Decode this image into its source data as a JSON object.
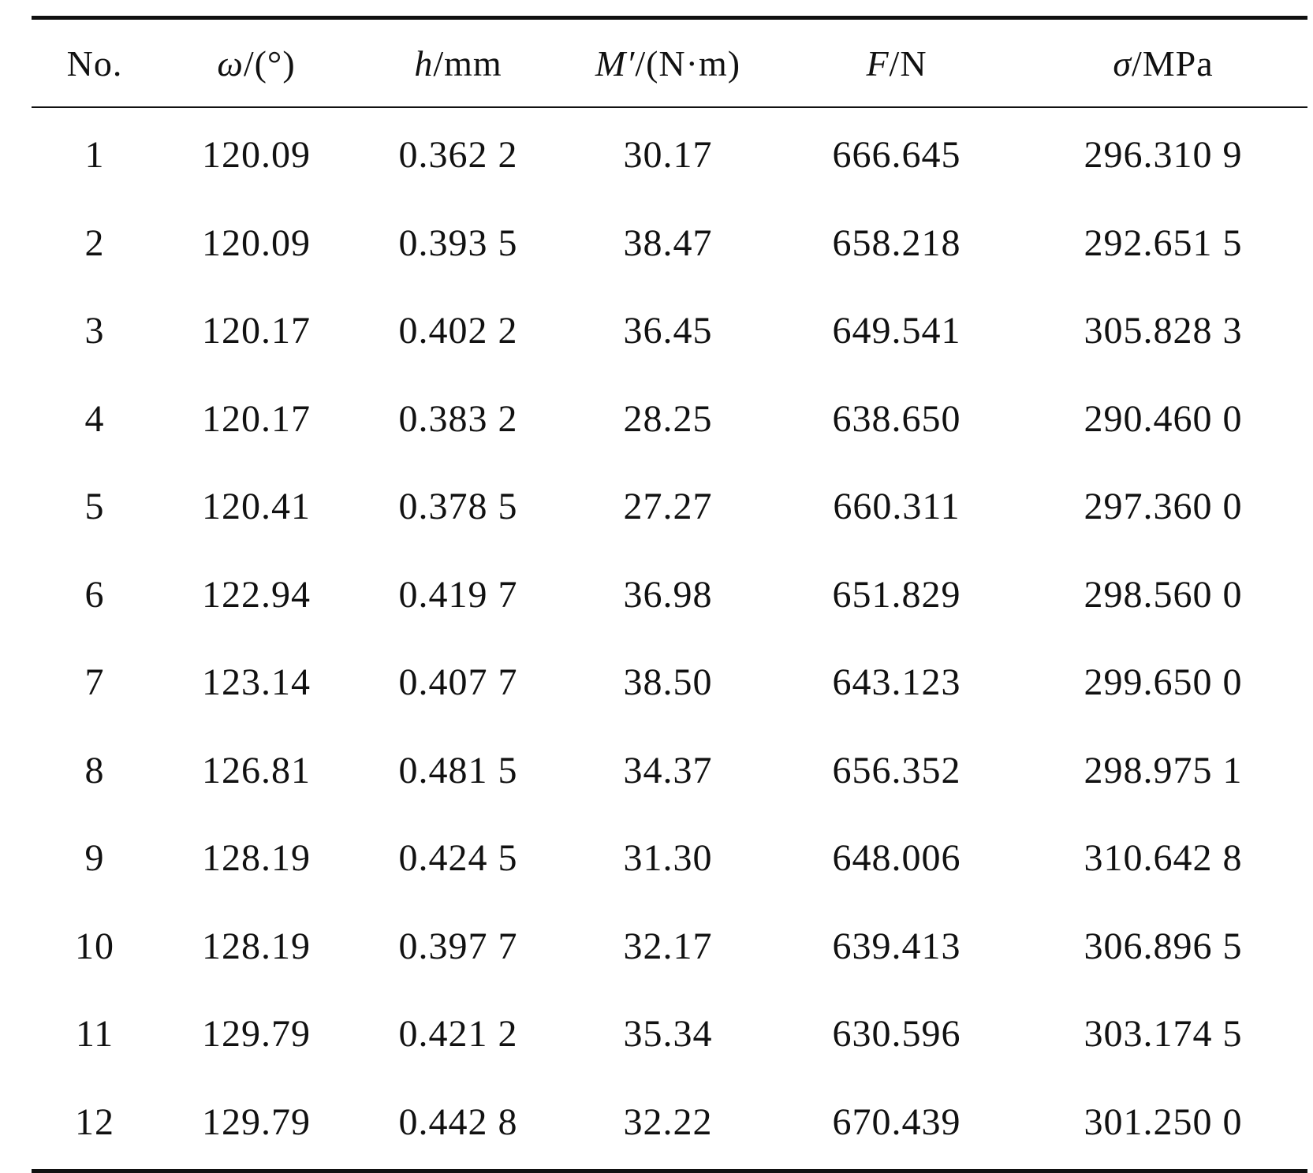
{
  "table": {
    "headers": [
      {
        "symbol": "",
        "unit": "No."
      },
      {
        "symbol": "ω",
        "unit": "/(°)"
      },
      {
        "symbol": "h",
        "unit": "/mm"
      },
      {
        "symbol": "M′",
        "unit": "/(N·m)"
      },
      {
        "symbol": "F",
        "unit": "/N"
      },
      {
        "symbol": "σ",
        "unit": "/MPa"
      }
    ],
    "rows": [
      [
        "1",
        "120.09",
        "0.362 2",
        "30.17",
        "666.645",
        "296.310 9"
      ],
      [
        "2",
        "120.09",
        "0.393 5",
        "38.47",
        "658.218",
        "292.651 5"
      ],
      [
        "3",
        "120.17",
        "0.402 2",
        "36.45",
        "649.541",
        "305.828 3"
      ],
      [
        "4",
        "120.17",
        "0.383 2",
        "28.25",
        "638.650",
        "290.460 0"
      ],
      [
        "5",
        "120.41",
        "0.378 5",
        "27.27",
        "660.311",
        "297.360 0"
      ],
      [
        "6",
        "122.94",
        "0.419 7",
        "36.98",
        "651.829",
        "298.560 0"
      ],
      [
        "7",
        "123.14",
        "0.407 7",
        "38.50",
        "643.123",
        "299.650 0"
      ],
      [
        "8",
        "126.81",
        "0.481 5",
        "34.37",
        "656.352",
        "298.975 1"
      ],
      [
        "9",
        "128.19",
        "0.424 5",
        "31.30",
        "648.006",
        "310.642 8"
      ],
      [
        "10",
        "128.19",
        "0.397 7",
        "32.17",
        "639.413",
        "306.896 5"
      ],
      [
        "11",
        "129.79",
        "0.421 2",
        "35.34",
        "630.596",
        "303.174 5"
      ],
      [
        "12",
        "129.79",
        "0.442 8",
        "32.22",
        "670.439",
        "301.250 0"
      ]
    ]
  }
}
